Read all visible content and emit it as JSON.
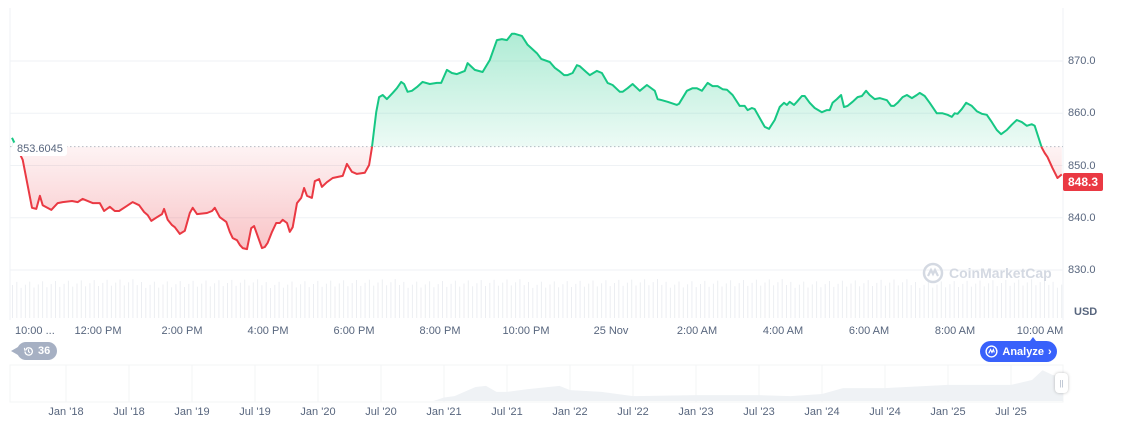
{
  "chart_data": {
    "type": "line",
    "title": "",
    "xlabel": "",
    "ylabel": "",
    "currency": "USD",
    "ylim": [
      827,
      880
    ],
    "y_ticks": [
      "830.0",
      "840.0",
      "850.0",
      "860.0",
      "870.0"
    ],
    "x_ticks": [
      "10:00 ...",
      "12:00 PM",
      "2:00 PM",
      "4:00 PM",
      "6:00 PM",
      "8:00 PM",
      "10:00 PM",
      "25 Nov",
      "2:00 AM",
      "4:00 AM",
      "6:00 AM",
      "8:00 AM",
      "10:00 AM"
    ],
    "grid": true,
    "baseline_value": "853.6045",
    "current_price": "848.3",
    "colors": {
      "up": "#16c784",
      "down": "#ea3943",
      "accent": "#3861fb"
    },
    "series": [
      {
        "times": [
          "Nov 24 10:00",
          "Nov 24 10:15",
          "Nov 24 10:28",
          "Nov 24 10:34",
          "Nov 24 10:39",
          "Nov 24 10:43",
          "Nov 24 10:55",
          "Nov 24 11:04",
          "Nov 24 11:11",
          "Nov 24 11:24",
          "Nov 24 11:32",
          "Nov 24 11:39",
          "Nov 24 11:53",
          "Nov 24 12:03",
          "Nov 24 12:09",
          "Nov 24 12:17",
          "Nov 24 12:24",
          "Nov 24 12:30",
          "Nov 24 12:40",
          "Nov 24 12:49",
          "Nov 24 12:58",
          "Nov 24 13:05",
          "Nov 24 13:10",
          "Nov 24 13:15",
          "Nov 24 13:23",
          "Nov 24 13:30",
          "Nov 24 13:33",
          "Nov 24 13:38",
          "Nov 24 13:44",
          "Nov 24 13:48",
          "Nov 24 13:55",
          "Nov 24 14:02",
          "Nov 24 14:09",
          "Nov 24 14:13",
          "Nov 24 14:19",
          "Nov 24 14:33",
          "Nov 24 14:40",
          "Nov 24 14:44",
          "Nov 24 14:51",
          "Nov 24 15:00",
          "Nov 24 15:05",
          "Nov 24 15:09",
          "Nov 24 15:15",
          "Nov 24 15:19",
          "Nov 24 15:23",
          "Nov 24 15:29",
          "Nov 24 15:35",
          "Nov 24 15:39",
          "Nov 24 15:50",
          "Nov 24 15:54",
          "Nov 24 15:58",
          "Nov 24 16:04",
          "Nov 24 16:10",
          "Nov 24 16:15",
          "Nov 24 16:19",
          "Nov 24 16:25",
          "Nov 24 16:29",
          "Nov 24 16:33",
          "Nov 24 16:39",
          "Nov 24 16:45",
          "Nov 24 16:49",
          "Nov 24 16:53",
          "Nov 24 17:00",
          "Nov 24 17:04",
          "Nov 24 17:10",
          "Nov 24 17:14",
          "Nov 24 17:21",
          "Nov 24 17:29",
          "Nov 24 17:43",
          "Nov 24 17:49",
          "Nov 24 17:56",
          "Nov 24 18:03",
          "Nov 24 18:14",
          "Nov 24 18:20",
          "Nov 24 18:24",
          "Nov 24 18:30",
          "Nov 24 18:34",
          "Nov 24 18:39",
          "Nov 24 18:45",
          "Nov 24 18:53",
          "Nov 24 18:59",
          "Nov 24 19:05",
          "Nov 24 19:09",
          "Nov 24 19:14",
          "Nov 24 19:20",
          "Nov 24 19:27",
          "Nov 24 19:35",
          "Nov 24 19:45",
          "Nov 24 19:55",
          "Nov 24 20:01",
          "Nov 24 20:09",
          "Nov 24 20:16",
          "Nov 24 20:23",
          "Nov 24 20:34",
          "Nov 24 20:38",
          "Nov 24 20:48",
          "Nov 24 20:59",
          "Nov 24 21:09",
          "Nov 24 21:19",
          "Nov 24 21:26",
          "Nov 24 21:33",
          "Nov 24 21:40",
          "Nov 24 21:44",
          "Nov 24 21:54",
          "Nov 24 22:02",
          "Nov 24 22:15",
          "Nov 24 22:21",
          "Nov 24 22:33",
          "Nov 24 22:40",
          "Nov 24 22:46",
          "Nov 24 22:53",
          "Nov 24 22:58",
          "Nov 24 23:05",
          "Nov 24 23:11",
          "Nov 24 23:15",
          "Nov 24 23:24",
          "Nov 24 23:29",
          "Nov 24 23:39",
          "Nov 24 23:46",
          "Nov 24 23:54",
          "Nov 25 00:01",
          "Nov 25 00:11",
          "Nov 25 00:15",
          "Nov 25 00:22",
          "Nov 25 00:29",
          "Nov 25 00:39",
          "Nov 25 00:49",
          "Nov 25 01:00",
          "Nov 25 01:04",
          "Nov 25 01:10",
          "Nov 25 01:18",
          "Nov 25 01:31",
          "Nov 25 01:34",
          "Nov 25 01:45",
          "Nov 25 01:53",
          "Nov 25 01:59",
          "Nov 25 02:06",
          "Nov 25 02:14",
          "Nov 25 02:21",
          "Nov 25 02:28",
          "Nov 25 02:35",
          "Nov 25 02:41",
          "Nov 25 02:49",
          "Nov 25 02:59",
          "Nov 25 03:06",
          "Nov 25 03:10",
          "Nov 25 03:16",
          "Nov 25 03:20",
          "Nov 25 03:27",
          "Nov 25 03:34",
          "Nov 25 03:40",
          "Nov 25 03:48",
          "Nov 25 03:55",
          "Nov 25 04:01",
          "Nov 25 04:05",
          "Nov 25 04:09",
          "Nov 25 04:15",
          "Nov 25 04:19",
          "Nov 25 04:26",
          "Nov 25 04:30",
          "Nov 25 04:37",
          "Nov 25 04:44",
          "Nov 25 04:54",
          "Nov 25 05:01",
          "Nov 25 05:05",
          "Nov 25 05:09",
          "Nov 25 05:15",
          "Nov 25 05:21",
          "Nov 25 05:25",
          "Nov 25 05:30",
          "Nov 25 05:37",
          "Nov 25 05:44",
          "Nov 25 05:50",
          "Nov 25 05:56",
          "Nov 25 06:01",
          "Nov 25 06:08",
          "Nov 25 06:15",
          "Nov 25 06:25",
          "Nov 25 06:31",
          "Nov 25 06:35",
          "Nov 25 06:40",
          "Nov 25 06:47",
          "Nov 25 06:53",
          "Nov 25 07:00",
          "Nov 25 07:07",
          "Nov 25 07:11",
          "Nov 25 07:18",
          "Nov 25 07:25",
          "Nov 25 07:35",
          "Nov 25 07:43",
          "Nov 25 07:50",
          "Nov 25 07:56",
          "Nov 25 08:00",
          "Nov 25 08:04",
          "Nov 25 08:10",
          "Nov 25 08:16",
          "Nov 25 08:24",
          "Nov 25 08:31",
          "Nov 25 08:38",
          "Nov 25 08:45",
          "Nov 25 08:52",
          "Nov 25 08:59",
          "Nov 25 09:05",
          "Nov 25 09:13",
          "Nov 25 09:20",
          "Nov 25 09:27",
          "Nov 25 09:34",
          "Nov 25 09:41",
          "Nov 25 09:48",
          "Nov 25 09:52",
          "Nov 25 10:02",
          "Nov 25 10:06",
          "Nov 25 10:10",
          "Nov 25 10:17",
          "Nov 25 10:24",
          "Nov 25 10:30"
        ],
        "values": [
          855.3,
          851.1,
          841.9,
          841.7,
          844.2,
          842.4,
          841.5,
          842.8,
          843.0,
          843.2,
          843.0,
          843.6,
          842.8,
          842.8,
          841.3,
          842.1,
          841.3,
          841.3,
          842.2,
          843.0,
          842.4,
          841.1,
          840.5,
          839.4,
          840.1,
          840.7,
          841.7,
          839.6,
          838.6,
          838.2,
          836.9,
          837.5,
          840.9,
          841.9,
          840.7,
          840.9,
          841.3,
          841.9,
          840.1,
          839.2,
          837.3,
          836.1,
          835.7,
          834.8,
          834.2,
          834.0,
          838.0,
          838.4,
          834.2,
          834.4,
          835.2,
          837.3,
          839.0,
          839.0,
          839.6,
          839.0,
          837.3,
          838.2,
          842.8,
          843.8,
          845.7,
          844.2,
          843.8,
          847.0,
          847.4,
          845.9,
          846.8,
          847.6,
          848.0,
          850.3,
          848.8,
          848.4,
          848.6,
          850.1,
          853.4,
          860.2,
          863.1,
          863.5,
          862.7,
          863.9,
          864.8,
          866.0,
          865.6,
          864.1,
          864.3,
          865.0,
          866.0,
          865.6,
          865.8,
          865.8,
          868.3,
          867.7,
          867.5,
          868.1,
          869.6,
          868.3,
          867.9,
          870.2,
          874.0,
          874.2,
          874.0,
          875.2,
          875.2,
          874.8,
          873.1,
          871.5,
          870.4,
          869.8,
          868.7,
          868.1,
          867.3,
          867.3,
          867.7,
          869.2,
          869.0,
          867.9,
          867.3,
          868.1,
          867.7,
          865.8,
          865.4,
          864.1,
          864.1,
          864.8,
          865.6,
          864.3,
          865.4,
          864.3,
          862.7,
          862.5,
          862.2,
          861.6,
          861.8,
          864.3,
          864.8,
          864.8,
          864.3,
          865.8,
          865.2,
          865.2,
          864.6,
          864.5,
          863.5,
          861.4,
          861.4,
          860.6,
          861.0,
          860.8,
          859.1,
          857.4,
          857.0,
          858.7,
          861.2,
          862.0,
          861.6,
          862.2,
          861.6,
          862.2,
          863.3,
          863.3,
          862.0,
          861.0,
          860.2,
          860.6,
          860.6,
          862.0,
          862.7,
          863.5,
          861.2,
          861.4,
          862.2,
          863.1,
          863.3,
          864.3,
          863.5,
          862.7,
          862.9,
          862.5,
          861.4,
          861.4,
          862.0,
          863.1,
          863.5,
          862.9,
          863.5,
          863.9,
          863.3,
          862.0,
          860.0,
          860.0,
          859.7,
          859.3,
          860.0,
          859.9,
          860.8,
          862.0,
          861.4,
          860.4,
          859.9,
          859.7,
          858.3,
          856.8,
          856.0,
          856.8,
          857.8,
          858.7,
          858.3,
          857.6,
          857.9,
          857.6,
          853.4,
          852.4,
          851.6,
          849.5,
          847.6,
          848.3
        ]
      }
    ],
    "navigator": {
      "x_ticks": [
        "Jan '18",
        "Jul '18",
        "Jan '19",
        "Jul '19",
        "Jan '20",
        "Jul '20",
        "Jan '21",
        "Jul '21",
        "Jan '22",
        "Jul '22",
        "Jan '23",
        "Jul '23",
        "Jan '24",
        "Jul '24",
        "Jan '25",
        "Jul '25"
      ],
      "dates": [
        "2017-10",
        "2020-12",
        "2021-01",
        "2021-02",
        "2021-04",
        "2021-05",
        "2021-06",
        "2021-07",
        "2021-09",
        "2021-12",
        "2022-01",
        "2022-04",
        "2022-07",
        "2023-01",
        "2023-07",
        "2023-10",
        "2024-01",
        "2024-03",
        "2024-07",
        "2025-01",
        "2025-07",
        "2025-09",
        "2025-10",
        "2025-11"
      ],
      "relative_level": [
        0,
        0,
        0.1,
        0.14,
        0.4,
        0.43,
        0.26,
        0.26,
        0.34,
        0.43,
        0.31,
        0.26,
        0.14,
        0.17,
        0.17,
        0.14,
        0.2,
        0.37,
        0.37,
        0.46,
        0.46,
        0.6,
        0.88,
        0.74
      ]
    }
  },
  "watermark": "CoinMarketCap",
  "history_badge": {
    "icon": "history-icon",
    "count": "36"
  },
  "analyze_button": {
    "icon": "ai-chart-icon",
    "label": "Analyze",
    "chevron": "›"
  }
}
